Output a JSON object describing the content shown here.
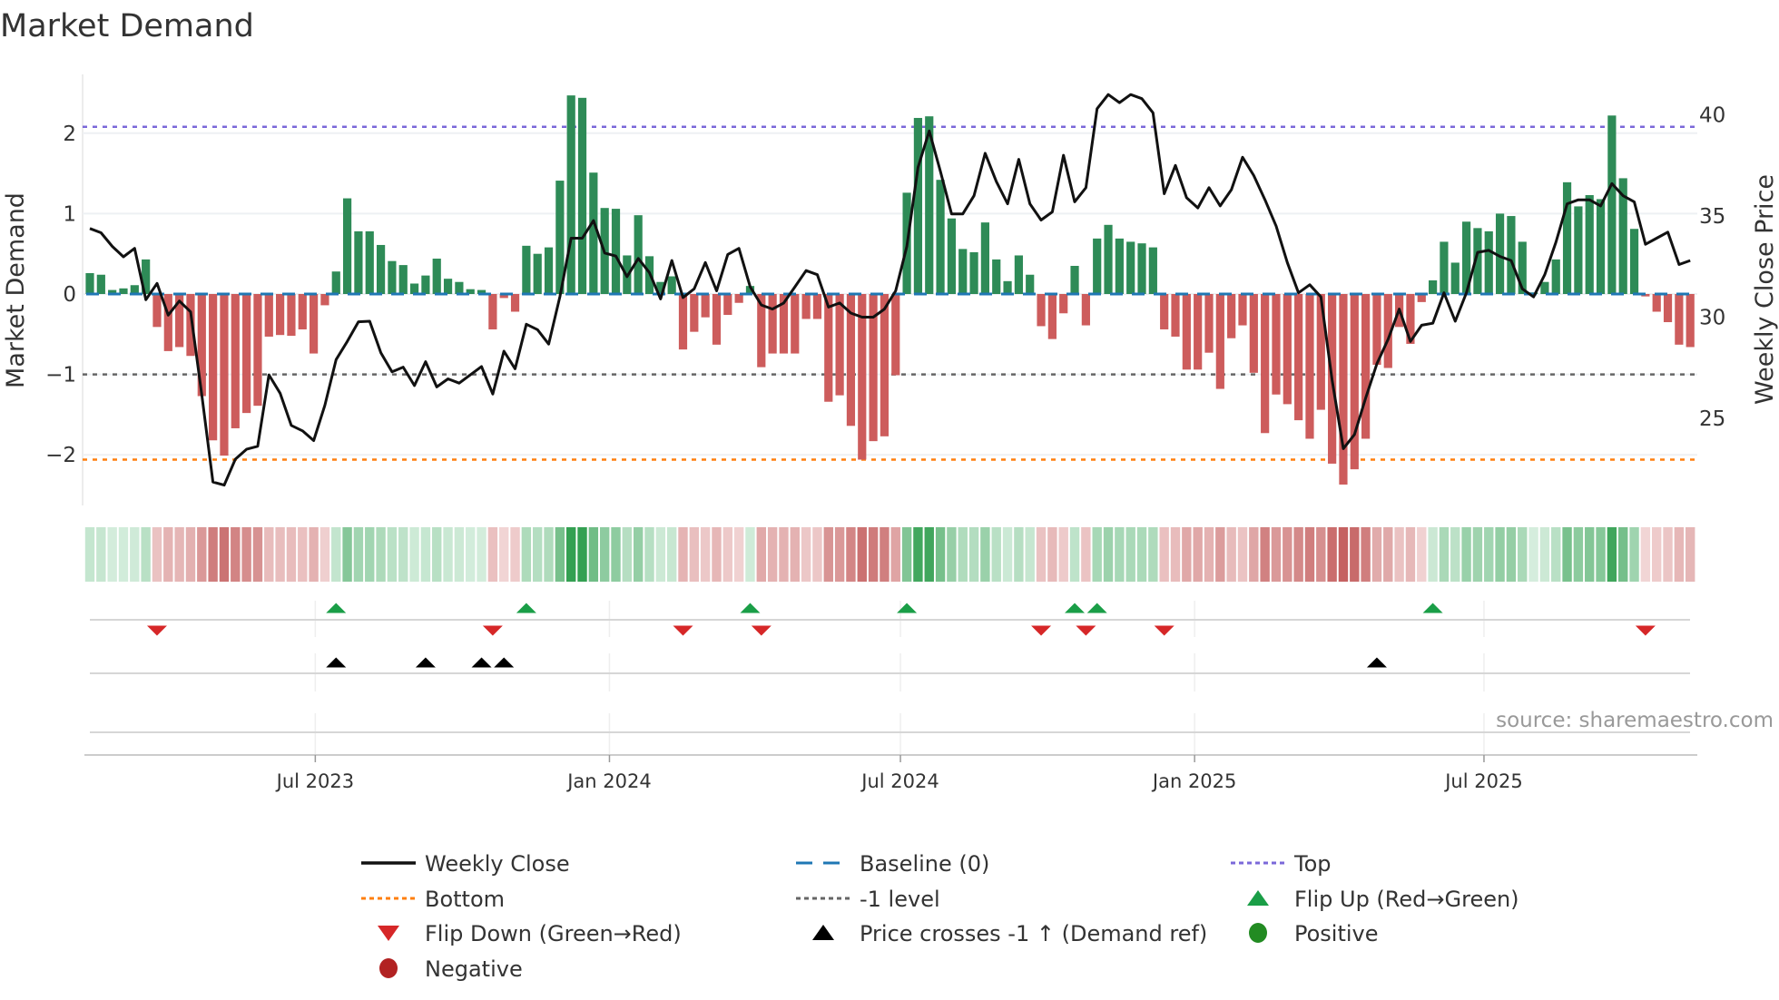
{
  "title": "Market Demand",
  "source": "source: sharemaestro.com",
  "chart_data": {
    "type": "bar",
    "title": "Market Demand",
    "xlabel": "",
    "ylabel": "Market Demand",
    "ylabel_right": "Weekly Close Price",
    "ylim": [
      -2.6,
      2.7
    ],
    "ylim_right": [
      20,
      42
    ],
    "start_date": "2023-02-10",
    "frequency": "weekly",
    "y_ticks": [
      {
        "value": 2,
        "label": "2"
      },
      {
        "value": 1,
        "label": "1"
      },
      {
        "value": 0,
        "label": "0"
      },
      {
        "value": -1,
        "label": "−1"
      },
      {
        "value": -2,
        "label": "−2"
      }
    ],
    "y_ticks_right": [
      {
        "value": 40,
        "label": "40"
      },
      {
        "value": 35,
        "label": "35"
      },
      {
        "value": 30,
        "label": "30"
      },
      {
        "value": 25,
        "label": "25"
      }
    ],
    "x_ticks": [
      {
        "date": "2023-07-01",
        "label": "Jul 2023"
      },
      {
        "date": "2024-01-01",
        "label": "Jan 2024"
      },
      {
        "date": "2024-07-01",
        "label": "Jul 2024"
      },
      {
        "date": "2025-01-01",
        "label": "Jan 2025"
      },
      {
        "date": "2025-07-01",
        "label": "Jul 2025"
      }
    ],
    "levels": {
      "top": 2.08,
      "bottom": -2.06,
      "minus_one": -1,
      "baseline": 0
    },
    "colors": {
      "positive": "#2e8b57",
      "negative": "#cd5c5c",
      "price": "#111111",
      "baseline": "#1f77b4",
      "top": "#7b68d9",
      "bottom": "#ff7f0e",
      "minus_one": "#666666",
      "flip_up": "#1a9e47",
      "flip_down": "#d62728",
      "cross": "#000000",
      "legend_positive": "#228b22",
      "legend_negative": "#b22222"
    },
    "series": [
      {
        "name": "Market Demand",
        "values": [
          0.26,
          0.24,
          0.05,
          0.07,
          0.11,
          0.43,
          -0.41,
          -0.71,
          -0.66,
          -0.77,
          -1.27,
          -1.82,
          -2.01,
          -1.67,
          -1.48,
          -1.39,
          -0.53,
          -0.51,
          -0.52,
          -0.44,
          -0.74,
          -0.14,
          0.28,
          1.19,
          0.78,
          0.78,
          0.61,
          0.41,
          0.36,
          0.13,
          0.23,
          0.44,
          0.19,
          0.15,
          0.06,
          0.05,
          -0.44,
          -0.05,
          -0.22,
          0.6,
          0.5,
          0.58,
          1.41,
          2.47,
          2.44,
          1.51,
          1.07,
          1.06,
          0.48,
          0.98,
          0.47,
          0.15,
          0.22,
          -0.69,
          -0.47,
          -0.29,
          -0.63,
          -0.26,
          -0.11,
          0.1,
          -0.91,
          -0.74,
          -0.74,
          -0.74,
          -0.31,
          -0.31,
          -1.34,
          -1.26,
          -1.64,
          -2.06,
          -1.83,
          -1.77,
          -1.01,
          1.26,
          2.19,
          2.21,
          1.42,
          0.94,
          0.56,
          0.52,
          0.89,
          0.43,
          0.16,
          0.48,
          0.24,
          -0.4,
          -0.56,
          -0.24,
          0.35,
          -0.39,
          0.69,
          0.86,
          0.69,
          0.65,
          0.63,
          0.58,
          -0.44,
          -0.53,
          -0.94,
          -0.94,
          -0.73,
          -1.18,
          -0.55,
          -0.39,
          -0.98,
          -1.73,
          -1.25,
          -1.37,
          -1.57,
          -1.8,
          -1.44,
          -2.11,
          -2.37,
          -2.18,
          -1.8,
          -0.88,
          -0.92,
          -0.41,
          -0.62,
          -0.1,
          0.17,
          0.65,
          0.39,
          0.9,
          0.82,
          0.78,
          1.0,
          0.97,
          0.65,
          0.02,
          0.15,
          0.43,
          1.39,
          1.09,
          1.23,
          1.18,
          2.22,
          1.44,
          0.81,
          -0.03,
          -0.22,
          -0.35,
          -0.63,
          -0.66
        ]
      },
      {
        "name": "Weekly Close",
        "axis": "right",
        "values": [
          34.38,
          34.17,
          33.5,
          32.98,
          33.4,
          30.86,
          31.67,
          30.1,
          30.8,
          30.26,
          26.17,
          21.85,
          21.7,
          22.98,
          23.47,
          23.62,
          27.15,
          26.24,
          24.65,
          24.38,
          23.9,
          25.64,
          27.9,
          28.8,
          29.77,
          29.8,
          28.24,
          27.3,
          27.53,
          26.62,
          27.8,
          26.55,
          26.95,
          26.74,
          27.15,
          27.56,
          26.2,
          28.32,
          27.45,
          29.65,
          29.38,
          28.67,
          31.02,
          33.9,
          33.9,
          34.77,
          33.17,
          33.02,
          32.0,
          32.9,
          32.2,
          30.9,
          32.8,
          30.97,
          31.4,
          32.7,
          31.3,
          33.1,
          33.4,
          31.5,
          30.6,
          30.4,
          30.7,
          31.5,
          32.3,
          32.1,
          30.5,
          30.7,
          30.2,
          30.0,
          30.0,
          30.4,
          31.3,
          33.5,
          37.4,
          39.2,
          37.2,
          35.1,
          35.1,
          36.0,
          38.1,
          36.7,
          35.6,
          37.8,
          35.6,
          34.8,
          35.2,
          38.0,
          35.7,
          36.4,
          40.3,
          41.0,
          40.6,
          41.0,
          40.8,
          40.1,
          36.1,
          37.5,
          35.9,
          35.4,
          36.4,
          35.5,
          36.3,
          37.9,
          37.0,
          35.8,
          34.5,
          32.7,
          31.2,
          31.6,
          31.0,
          26.9,
          23.5,
          24.2,
          26.0,
          27.7,
          28.9,
          30.4,
          28.8,
          29.6,
          29.7,
          31.2,
          29.8,
          31.2,
          33.2,
          33.3,
          33.0,
          32.8,
          31.4,
          31.0,
          32.1,
          33.7,
          35.6,
          35.8,
          35.8,
          35.5,
          36.6,
          36.0,
          35.7,
          33.6,
          33.9,
          34.2,
          32.6,
          32.8
        ]
      }
    ],
    "flip_up_weeks": [
      23,
      40,
      60,
      74,
      89,
      91,
      121
    ],
    "flip_down_weeks": [
      7,
      37,
      54,
      61,
      86,
      90,
      97,
      140
    ],
    "price_cross_weeks": [
      23,
      31,
      36,
      38,
      116
    ],
    "legend": [
      {
        "label": "Weekly Close",
        "symbol": "line",
        "color": "#111111",
        "dash": "solid"
      },
      {
        "label": "Baseline (0)",
        "symbol": "line",
        "color": "#1f77b4",
        "dash": "dashed"
      },
      {
        "label": "Top",
        "symbol": "line",
        "color": "#7b68d9",
        "dash": "dotted"
      },
      {
        "label": "Bottom",
        "symbol": "line",
        "color": "#ff7f0e",
        "dash": "dotted"
      },
      {
        "label": "-1 level",
        "symbol": "line",
        "color": "#666666",
        "dash": "dotted"
      },
      {
        "label": "Flip Up (Red→Green)",
        "symbol": "triangle-up",
        "color": "#1a9e47"
      },
      {
        "label": "Flip Down (Green→Red)",
        "symbol": "triangle-down",
        "color": "#d62728"
      },
      {
        "label": "Price crosses -1 ↑ (Demand ref)",
        "symbol": "triangle-up",
        "color": "#000000"
      },
      {
        "label": "Positive",
        "symbol": "circle",
        "color": "#228b22"
      },
      {
        "label": "Negative",
        "symbol": "circle",
        "color": "#b22222"
      }
    ],
    "legend_placement": "bottom"
  }
}
